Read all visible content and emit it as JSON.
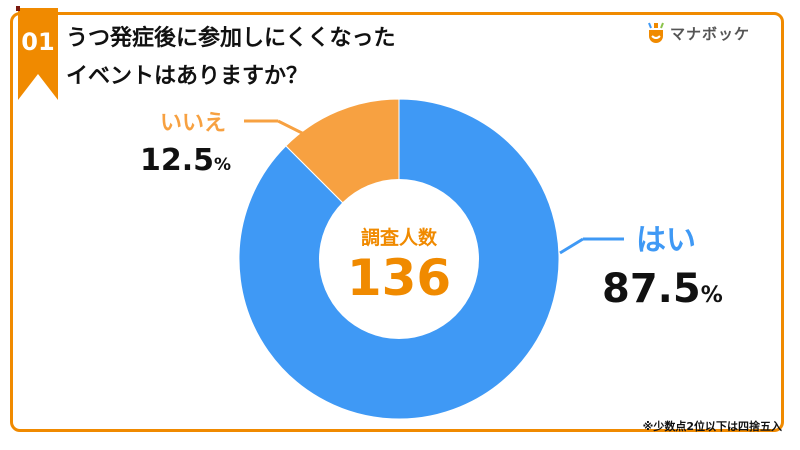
{
  "badge": {
    "number": "01"
  },
  "title": {
    "line1": "うつ発症後に参加しにくくなった",
    "line2": "イベントはありますか？"
  },
  "logo": {
    "text": "マナボッケ"
  },
  "center": {
    "label": "調査人数",
    "value": "136"
  },
  "note": "※少数点2位以下は四捨五入",
  "colors": {
    "accent": "#F08A00",
    "yes": "#3F99F5",
    "no": "#F7A141",
    "center_text": "#F08A00"
  },
  "chart_data": {
    "type": "pie",
    "donut": true,
    "title": "うつ発症後に参加しにくくなったイベントはありますか？",
    "total": 136,
    "slices": [
      {
        "label": "はい",
        "value": 87.5,
        "display": "87.5",
        "unit": "%"
      },
      {
        "label": "いいえ",
        "value": 12.5,
        "display": "12.5",
        "unit": "%"
      }
    ]
  }
}
